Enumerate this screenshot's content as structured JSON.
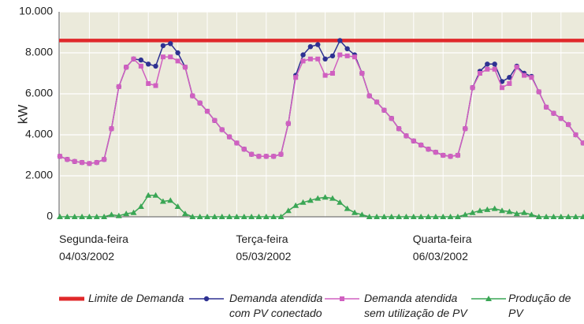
{
  "chart_data": {
    "type": "line",
    "y_label": "kW",
    "categories": [
      "Segunda-feira\n04/03/2002",
      null,
      null,
      null,
      null,
      null,
      null,
      null,
      null,
      null,
      null,
      null,
      null,
      null,
      null,
      null,
      null,
      null,
      null,
      null,
      null,
      null,
      null,
      null,
      "Terça-feira\n05/03/2002",
      null,
      null,
      null,
      null,
      null,
      null,
      null,
      null,
      null,
      null,
      null,
      null,
      null,
      null,
      null,
      null,
      null,
      null,
      null,
      null,
      null,
      null,
      null,
      "Quarta-feira\n06/03/2002",
      null,
      null,
      null,
      null,
      null,
      null,
      null,
      null,
      null,
      null,
      null,
      null,
      null,
      null,
      null,
      null,
      null,
      null,
      null,
      null,
      null,
      null,
      null
    ],
    "ylim": [
      0,
      10000
    ],
    "yticks": [
      0,
      {
        "value": 2000,
        "label": "2.000"
      },
      {
        "value": 4000,
        "label": "4.000"
      },
      {
        "value": 6000,
        "label": "6.000"
      },
      {
        "value": 8000,
        "label": "8.000"
      },
      {
        "value": 10000,
        "label": "10.000"
      }
    ],
    "grid": true,
    "legend": "bottom",
    "series": [
      {
        "name": "Limite de Demanda",
        "color": "#e0282a",
        "marker": "none",
        "values": [
          8600,
          8600,
          8600,
          8600,
          8600,
          8600,
          8600,
          8600,
          8600,
          8600,
          8600,
          8600,
          8600,
          8600,
          8600,
          8600,
          8600,
          8600,
          8600,
          8600,
          8600,
          8600,
          8600,
          8600,
          8600,
          8600,
          8600,
          8600,
          8600,
          8600,
          8600,
          8600,
          8600,
          8600,
          8600,
          8600,
          8600,
          8600,
          8600,
          8600,
          8600,
          8600,
          8600,
          8600,
          8600,
          8600,
          8600,
          8600,
          8600,
          8600,
          8600,
          8600,
          8600,
          8600,
          8600,
          8600,
          8600,
          8600,
          8600,
          8600,
          8600,
          8600,
          8600,
          8600,
          8600,
          8600,
          8600,
          8600,
          8600,
          8600,
          8600,
          8600
        ]
      },
      {
        "name": "Demanda atendida\ncom PV conectado",
        "color": "#2e3192",
        "marker": "circle",
        "values": [
          2950,
          2800,
          2700,
          2650,
          2600,
          2650,
          2800,
          4300,
          6350,
          7300,
          7700,
          7650,
          7450,
          7350,
          8350,
          8450,
          8000,
          7300,
          5900,
          5550,
          5150,
          4700,
          4250,
          3900,
          3600,
          3300,
          3050,
          2950,
          2950,
          2950,
          3050,
          4550,
          6900,
          7900,
          8300,
          8400,
          7700,
          7850,
          8600,
          8200,
          7900,
          7000,
          5900,
          5600,
          5200,
          4800,
          4300,
          3950,
          3700,
          3500,
          3300,
          3150,
          3000,
          2950,
          3000,
          4300,
          6300,
          7100,
          7450,
          7450,
          6600,
          6800,
          7350,
          7000,
          6850,
          6100,
          5350,
          5050,
          4800,
          4500,
          4000,
          3600
        ]
      },
      {
        "name": "Demanda atendida\nsem utilização de PV",
        "color": "#d060c0",
        "marker": "square",
        "values": [
          2950,
          2800,
          2700,
          2650,
          2600,
          2650,
          2800,
          4300,
          6350,
          7300,
          7700,
          7350,
          6500,
          6400,
          7800,
          7800,
          7600,
          7300,
          5900,
          5550,
          5150,
          4700,
          4250,
          3900,
          3600,
          3300,
          3050,
          2950,
          2950,
          2950,
          3050,
          4550,
          6800,
          7600,
          7700,
          7700,
          6900,
          7000,
          7900,
          7850,
          7800,
          7000,
          5900,
          5600,
          5200,
          4800,
          4300,
          3950,
          3700,
          3500,
          3300,
          3150,
          3000,
          2950,
          3000,
          4300,
          6300,
          7000,
          7200,
          7200,
          6300,
          6500,
          7300,
          6900,
          6800,
          6100,
          5350,
          5050,
          4800,
          4500,
          4000,
          3600
        ]
      },
      {
        "name": "Produção de PV",
        "color": "#3aa655",
        "marker": "triangle",
        "values": [
          0,
          0,
          0,
          0,
          0,
          0,
          0,
          100,
          50,
          150,
          200,
          500,
          1050,
          1050,
          750,
          800,
          500,
          150,
          0,
          0,
          0,
          0,
          0,
          0,
          0,
          0,
          0,
          0,
          0,
          0,
          0,
          300,
          550,
          700,
          800,
          900,
          950,
          900,
          700,
          400,
          200,
          100,
          0,
          0,
          0,
          0,
          0,
          0,
          0,
          0,
          0,
          0,
          0,
          0,
          0,
          100,
          200,
          300,
          350,
          400,
          300,
          250,
          150,
          200,
          100,
          0,
          0,
          0,
          0,
          0,
          0,
          0
        ]
      }
    ]
  }
}
